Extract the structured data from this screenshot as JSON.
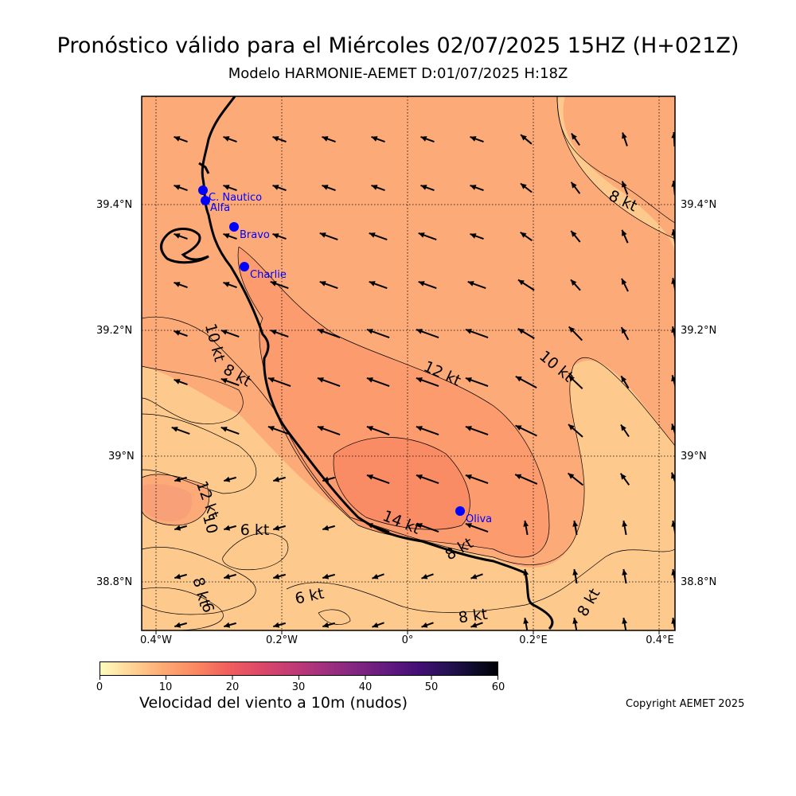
{
  "header": {
    "title": "Pronóstico válido para el Miércoles 02/07/2025 15HZ (H+021Z)",
    "subtitle": "Modelo HARMONIE-AEMET D:01/07/2025 H:18Z"
  },
  "map": {
    "lat_labels": [
      "39.4°N",
      "39.2°N",
      "39°N",
      "38.8°N"
    ],
    "lon_labels": [
      "0.4°W",
      "0.2°W",
      "0°",
      "0.2°E",
      "0.4°E"
    ],
    "stations": [
      {
        "name": "C. Nautico"
      },
      {
        "name": "Alfa"
      },
      {
        "name": "Bravo"
      },
      {
        "name": "Charlie"
      },
      {
        "name": "Oliva"
      }
    ],
    "contour_labels": [
      {
        "text": "8 kt"
      },
      {
        "text": "10 kt"
      },
      {
        "text": "12 kt"
      },
      {
        "text": "10 kt"
      },
      {
        "text": "8 kt"
      },
      {
        "text": "14 kt"
      },
      {
        "text": "12 kt"
      },
      {
        "text": "10"
      },
      {
        "text": "6 kt"
      },
      {
        "text": "8 kt"
      },
      {
        "text": "6 kt"
      },
      {
        "text": "8 kt"
      },
      {
        "text": "8 kt"
      },
      {
        "text": "8 kt"
      },
      {
        "text": "6"
      }
    ],
    "colors": {
      "station": "#0000ff",
      "station_label": "#0000ff",
      "coast": "#000000",
      "bg_low": "#fdc98d",
      "bg_mid": "#fcaa78",
      "bg_high": "#fb9b6e",
      "bg_peak": "#f98b65"
    }
  },
  "colorbar": {
    "ticks": [
      "0",
      "10",
      "20",
      "30",
      "40",
      "50",
      "60"
    ],
    "label": "Velocidad del viento a 10m (nudos)"
  },
  "footer": {
    "copyright": "Copyright AEMET 2025"
  }
}
